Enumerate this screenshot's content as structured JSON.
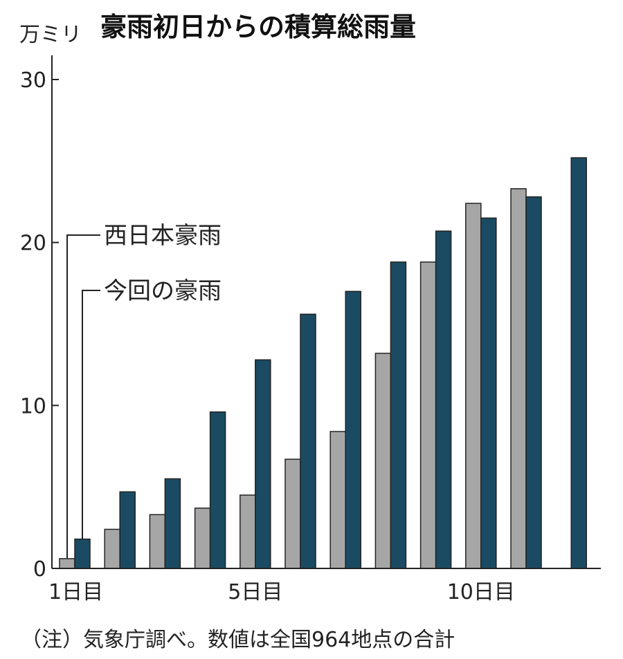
{
  "chart_data": {
    "type": "bar",
    "title": "豪雨初日からの積算総雨量",
    "unit_label": "万ミリ",
    "ylim": [
      0,
      30
    ],
    "y_ticks": [
      0,
      10,
      20,
      30
    ],
    "categories": [
      1,
      2,
      3,
      4,
      5,
      6,
      7,
      8,
      9,
      10,
      11,
      12
    ],
    "x_tick_labels": [
      {
        "day": 1,
        "label": "1日目"
      },
      {
        "day": 5,
        "label": "5日目"
      },
      {
        "day": 10,
        "label": "10日目"
      }
    ],
    "series": [
      {
        "name": "西日本豪雨",
        "color": "#a6a6a6",
        "values": [
          0.6,
          2.4,
          3.3,
          3.7,
          4.5,
          6.7,
          8.4,
          13.2,
          18.8,
          22.4,
          23.3,
          null
        ]
      },
      {
        "name": "今回の豪雨",
        "color": "#1b4b63",
        "values": [
          1.8,
          4.7,
          5.5,
          9.6,
          12.8,
          15.6,
          17.0,
          18.8,
          20.7,
          21.5,
          22.8,
          25.2
        ]
      }
    ],
    "grid": false,
    "legend": "callout labels at upper left"
  },
  "footnote": "（注）気象庁調べ。数値は全国964地点の合計"
}
